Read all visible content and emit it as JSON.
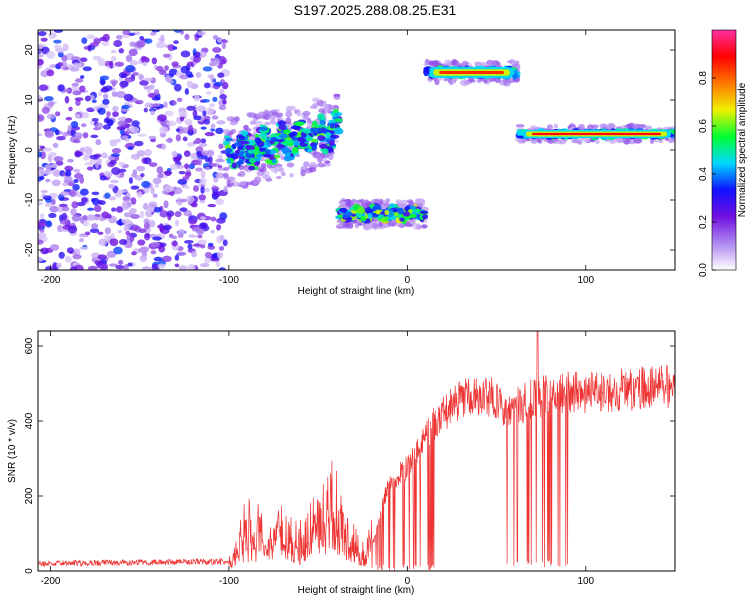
{
  "figure": {
    "title": "S197.2025.288.08.25.E31"
  },
  "colors": {
    "snr_line": "#ee3333",
    "axis": "#000000"
  },
  "chart_data": [
    {
      "type": "heatmap",
      "xlabel": "Height of straight line (km)",
      "ylabel": "Frequency (Hz)",
      "xlim": [
        -207,
        150
      ],
      "ylim": [
        -24,
        24
      ],
      "x_ticks": [
        -200,
        -100,
        0,
        100
      ],
      "y_ticks": [
        -20,
        -10,
        0,
        10,
        20
      ],
      "colorbar": {
        "label": "Normalized spectral amplitude",
        "range": [
          0,
          1
        ],
        "ticks": [
          0.0,
          0.2,
          0.4,
          0.6,
          0.8
        ],
        "tick_labels": [
          "0.0",
          "0.2",
          "0.4",
          "0.6",
          "0.8"
        ],
        "stops": [
          "#ffffff",
          "#b088f0",
          "#7010e0",
          "#1010ff",
          "#00d8ff",
          "#00ff30",
          "#f0f000",
          "#ff7800",
          "#ff0000",
          "#ff30a0"
        ]
      },
      "segments": [
        {
          "x": [
            -207,
            -102
          ],
          "frequency": 0,
          "spread": 24,
          "amplitude": 0.12,
          "kind": "noise"
        },
        {
          "x": [
            -102,
            -38
          ],
          "frequency": [
            -1,
            4
          ],
          "spread": 4,
          "amplitude": 0.35,
          "kind": "wavy"
        },
        {
          "x": [
            -38,
            10
          ],
          "frequency": -12.8,
          "spread": 1.5,
          "amplitude": 0.45,
          "kind": "wavy"
        },
        {
          "x": [
            10,
            62
          ],
          "frequency": 15.5,
          "spread": 1.2,
          "amplitude": 0.85,
          "kind": "band"
        },
        {
          "x": [
            62,
            150
          ],
          "frequency": 3.2,
          "spread": 0.9,
          "amplitude": 0.9,
          "kind": "band"
        }
      ]
    },
    {
      "type": "line",
      "xlabel": "Height of straight line (km)",
      "ylabel": "SNR (10 * v/v)",
      "xlim": [
        -207,
        150
      ],
      "ylim": [
        0,
        640
      ],
      "x_ticks": [
        -200,
        -100,
        0,
        100
      ],
      "y_ticks": [
        0,
        200,
        400,
        600
      ],
      "envelope": [
        {
          "x": -207,
          "snr": 20
        },
        {
          "x": -100,
          "snr": 25
        },
        {
          "x": -95,
          "snr": 60
        },
        {
          "x": -88,
          "snr": 120
        },
        {
          "x": -80,
          "snr": 80
        },
        {
          "x": -70,
          "snr": 110
        },
        {
          "x": -60,
          "snr": 80
        },
        {
          "x": -50,
          "snr": 150
        },
        {
          "x": -40,
          "snr": 170
        },
        {
          "x": -33,
          "snr": 80
        },
        {
          "x": -26,
          "snr": 40
        },
        {
          "x": -18,
          "snr": 90
        },
        {
          "x": -12,
          "snr": 210
        },
        {
          "x": -6,
          "snr": 250
        },
        {
          "x": 0,
          "snr": 280
        },
        {
          "x": 6,
          "snr": 320
        },
        {
          "x": 12,
          "snr": 380
        },
        {
          "x": 20,
          "snr": 420
        },
        {
          "x": 30,
          "snr": 455
        },
        {
          "x": 40,
          "snr": 470
        },
        {
          "x": 50,
          "snr": 460
        },
        {
          "x": 55,
          "snr": 420
        },
        {
          "x": 62,
          "snr": 440
        },
        {
          "x": 70,
          "snr": 460
        },
        {
          "x": 78,
          "snr": 470
        },
        {
          "x": 90,
          "snr": 475
        },
        {
          "x": 110,
          "snr": 480
        },
        {
          "x": 130,
          "snr": 488
        },
        {
          "x": 150,
          "snr": 492
        }
      ],
      "dropouts": [
        {
          "x": [
            -25,
            15
          ],
          "min_snr": 0
        },
        {
          "x": [
            55,
            90
          ],
          "min_snr": 10
        }
      ],
      "peak": {
        "x": 73,
        "snr": 640
      }
    }
  ]
}
